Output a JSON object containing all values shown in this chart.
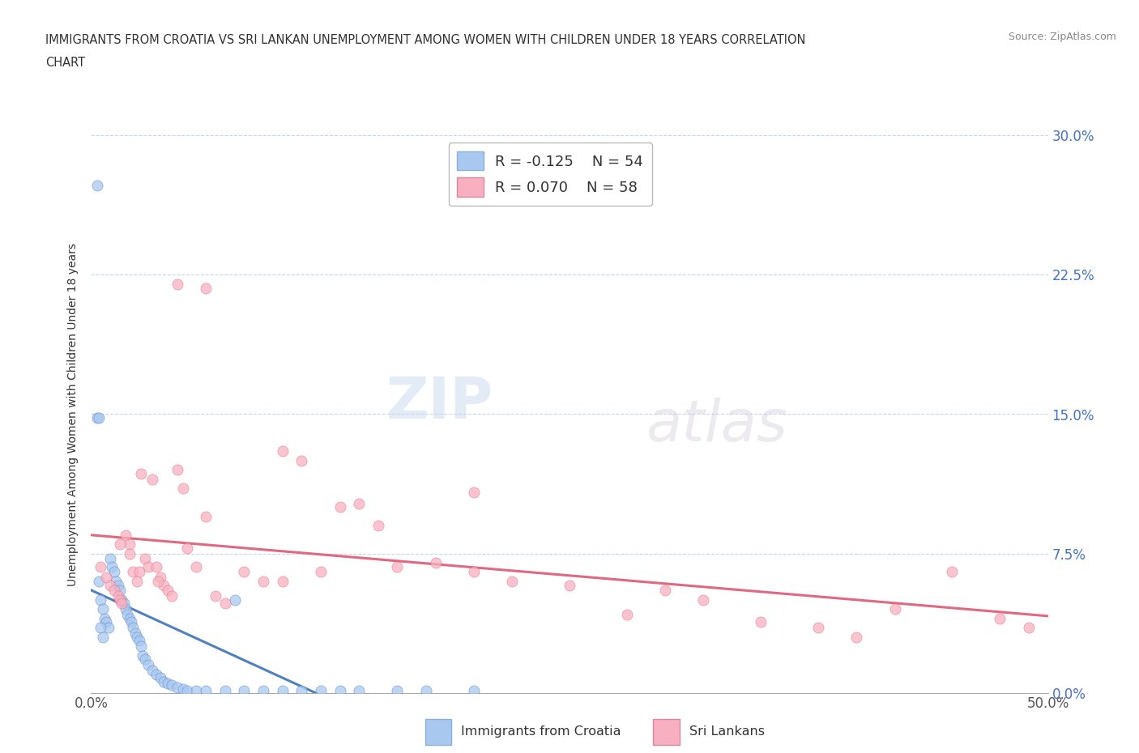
{
  "title_line1": "IMMIGRANTS FROM CROATIA VS SRI LANKAN UNEMPLOYMENT AMONG WOMEN WITH CHILDREN UNDER 18 YEARS CORRELATION",
  "title_line2": "CHART",
  "source_text": "Source: ZipAtlas.com",
  "ylabel": "Unemployment Among Women with Children Under 18 years",
  "xlim": [
    0.0,
    0.5
  ],
  "ylim": [
    0.0,
    0.3
  ],
  "xticks": [
    0.0,
    0.1,
    0.2,
    0.3,
    0.4,
    0.5
  ],
  "xticklabels": [
    "0.0%",
    "",
    "",
    "",
    "",
    "50.0%"
  ],
  "yticks": [
    0.0,
    0.075,
    0.15,
    0.225,
    0.3
  ],
  "yticklabels_right": [
    "0.0%",
    "7.5%",
    "15.0%",
    "22.5%",
    "30.0%"
  ],
  "legend_r1": "R = -0.125",
  "legend_n1": "N = 54",
  "legend_r2": "R = 0.070",
  "legend_n2": "N = 58",
  "color_croatia": "#a8c8f0",
  "color_srilanka": "#f8b0c0",
  "color_trendline_croatia": "#5080c0",
  "color_trendline_srilanka": "#e06880",
  "color_grid": "#c8d4e8",
  "watermark_zip": "ZIP",
  "watermark_atlas": "atlas",
  "croatia_x": [
    0.003,
    0.004,
    0.005,
    0.006,
    0.007,
    0.008,
    0.009,
    0.01,
    0.011,
    0.012,
    0.013,
    0.014,
    0.015,
    0.016,
    0.017,
    0.018,
    0.019,
    0.02,
    0.021,
    0.022,
    0.023,
    0.024,
    0.025,
    0.026,
    0.027,
    0.028,
    0.03,
    0.032,
    0.034,
    0.036,
    0.038,
    0.04,
    0.042,
    0.045,
    0.048,
    0.05,
    0.055,
    0.06,
    0.07,
    0.075,
    0.08,
    0.09,
    0.1,
    0.11,
    0.12,
    0.13,
    0.14,
    0.16,
    0.175,
    0.2,
    0.003,
    0.004,
    0.005,
    0.006
  ],
  "croatia_y": [
    0.273,
    0.06,
    0.05,
    0.045,
    0.04,
    0.038,
    0.035,
    0.072,
    0.068,
    0.065,
    0.06,
    0.058,
    0.055,
    0.05,
    0.048,
    0.045,
    0.042,
    0.04,
    0.038,
    0.035,
    0.032,
    0.03,
    0.028,
    0.025,
    0.02,
    0.018,
    0.015,
    0.012,
    0.01,
    0.008,
    0.006,
    0.005,
    0.004,
    0.003,
    0.002,
    0.001,
    0.001,
    0.001,
    0.001,
    0.05,
    0.001,
    0.001,
    0.001,
    0.001,
    0.001,
    0.001,
    0.001,
    0.001,
    0.001,
    0.001,
    0.148,
    0.148,
    0.035,
    0.03
  ],
  "srilanka_x": [
    0.005,
    0.008,
    0.01,
    0.012,
    0.014,
    0.015,
    0.016,
    0.018,
    0.02,
    0.022,
    0.024,
    0.026,
    0.028,
    0.03,
    0.032,
    0.034,
    0.036,
    0.038,
    0.04,
    0.042,
    0.045,
    0.048,
    0.05,
    0.055,
    0.06,
    0.065,
    0.07,
    0.08,
    0.09,
    0.1,
    0.11,
    0.12,
    0.13,
    0.14,
    0.15,
    0.16,
    0.18,
    0.2,
    0.22,
    0.25,
    0.28,
    0.3,
    0.32,
    0.35,
    0.38,
    0.4,
    0.42,
    0.45,
    0.475,
    0.49,
    0.015,
    0.02,
    0.025,
    0.035,
    0.045,
    0.06,
    0.1,
    0.2
  ],
  "srilanka_y": [
    0.068,
    0.062,
    0.058,
    0.055,
    0.052,
    0.05,
    0.048,
    0.085,
    0.08,
    0.065,
    0.06,
    0.118,
    0.072,
    0.068,
    0.115,
    0.068,
    0.062,
    0.058,
    0.055,
    0.052,
    0.12,
    0.11,
    0.078,
    0.068,
    0.095,
    0.052,
    0.048,
    0.065,
    0.06,
    0.06,
    0.125,
    0.065,
    0.1,
    0.102,
    0.09,
    0.068,
    0.07,
    0.065,
    0.06,
    0.058,
    0.042,
    0.055,
    0.05,
    0.038,
    0.035,
    0.03,
    0.045,
    0.065,
    0.04,
    0.035,
    0.08,
    0.075,
    0.065,
    0.06,
    0.22,
    0.218,
    0.13,
    0.108
  ]
}
